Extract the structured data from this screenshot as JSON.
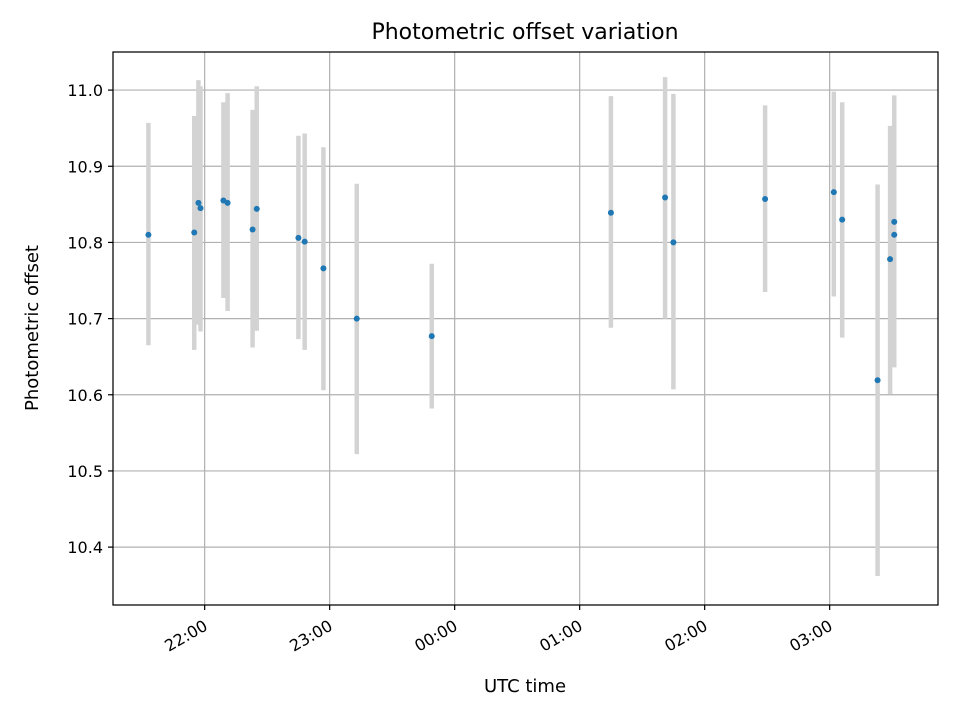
{
  "chart_data": {
    "type": "scatter",
    "title": "Photometric offset variation",
    "xlabel": "UTC time",
    "ylabel": "Photometric offset",
    "x_unit": "UTC time (HH:MM, night spanning midnight)",
    "xlim": [
      "21:16",
      "03:52"
    ],
    "ylim": [
      10.324,
      11.05
    ],
    "x_ticks": [
      "22:00",
      "23:00",
      "00:00",
      "01:00",
      "02:00",
      "03:00"
    ],
    "y_ticks": [
      "10.4",
      "10.5",
      "10.6",
      "10.7",
      "10.8",
      "10.9",
      "11.0"
    ],
    "grid": true,
    "colors": {
      "points": "#1f77b4",
      "error_bars": "#d3d3d3",
      "grid": "#b0b0b0"
    },
    "series": [
      {
        "points": [
          {
            "x": "21:33",
            "y": 10.81,
            "y_low": 10.665,
            "y_high": 10.957
          },
          {
            "x": "21:55",
            "y": 10.813,
            "y_low": 10.659,
            "y_high": 10.966
          },
          {
            "x": "21:57",
            "y": 10.852,
            "y_low": 10.692,
            "y_high": 11.013
          },
          {
            "x": "21:58",
            "y": 10.845,
            "y_low": 10.683,
            "y_high": 11.005
          },
          {
            "x": "22:09",
            "y": 10.855,
            "y_low": 10.727,
            "y_high": 10.984
          },
          {
            "x": "22:11",
            "y": 10.852,
            "y_low": 10.71,
            "y_high": 10.996
          },
          {
            "x": "22:23",
            "y": 10.817,
            "y_low": 10.662,
            "y_high": 10.974
          },
          {
            "x": "22:25",
            "y": 10.844,
            "y_low": 10.684,
            "y_high": 11.005
          },
          {
            "x": "22:45",
            "y": 10.806,
            "y_low": 10.673,
            "y_high": 10.94
          },
          {
            "x": "22:48",
            "y": 10.801,
            "y_low": 10.659,
            "y_high": 10.943
          },
          {
            "x": "22:57",
            "y": 10.766,
            "y_low": 10.606,
            "y_high": 10.925
          },
          {
            "x": "23:13",
            "y": 10.7,
            "y_low": 10.522,
            "y_high": 10.877
          },
          {
            "x": "23:49",
            "y": 10.677,
            "y_low": 10.582,
            "y_high": 10.772
          },
          {
            "x": "01:15",
            "y": 10.839,
            "y_low": 10.688,
            "y_high": 10.992
          },
          {
            "x": "01:41",
            "y": 10.859,
            "y_low": 10.7,
            "y_high": 11.017
          },
          {
            "x": "01:45",
            "y": 10.8,
            "y_low": 10.607,
            "y_high": 10.995
          },
          {
            "x": "02:29",
            "y": 10.857,
            "y_low": 10.735,
            "y_high": 10.98
          },
          {
            "x": "03:02",
            "y": 10.866,
            "y_low": 10.729,
            "y_high": 10.998
          },
          {
            "x": "03:06",
            "y": 10.83,
            "y_low": 10.675,
            "y_high": 10.984
          },
          {
            "x": "03:23",
            "y": 10.619,
            "y_low": 10.362,
            "y_high": 10.876
          },
          {
            "x": "03:29",
            "y": 10.778,
            "y_low": 10.601,
            "y_high": 10.953
          },
          {
            "x": "03:31",
            "y": 10.81,
            "y_low": 10.636,
            "y_high": 10.993
          },
          {
            "x": "03:31",
            "y": 10.827,
            "y_low": 10.662,
            "y_high": 10.992
          }
        ]
      }
    ]
  }
}
